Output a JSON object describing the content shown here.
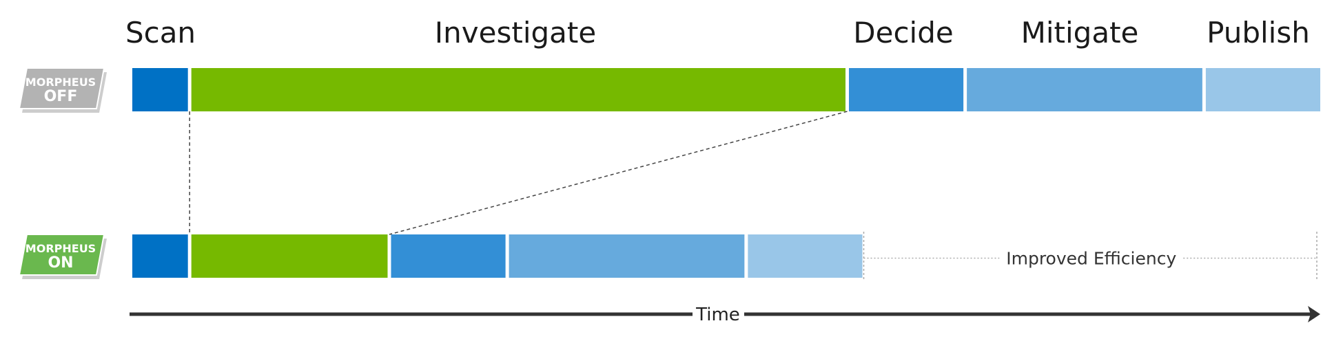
{
  "phases": [
    {
      "key": "scan",
      "label": "Scan",
      "color": "#0071c5"
    },
    {
      "key": "investigate",
      "label": "Investigate",
      "color": "#76b900"
    },
    {
      "key": "decide",
      "label": "Decide",
      "color": "#338fd6"
    },
    {
      "key": "mitigate",
      "label": "Mitigate",
      "color": "#66aadd"
    },
    {
      "key": "publish",
      "label": "Publish",
      "color": "#99c6e8"
    }
  ],
  "rows": [
    {
      "key": "off",
      "badge_top": "MORPHEUS",
      "badge_bottom": "OFF",
      "badge_color": "#b3b3b3",
      "durations": [
        85,
        1000,
        175,
        360,
        175
      ]
    },
    {
      "key": "on",
      "badge_top": "MORPHEUS",
      "badge_bottom": "ON",
      "badge_color": "#6ab84e",
      "durations": [
        85,
        300,
        175,
        360,
        175
      ]
    }
  ],
  "efficiency_label": "Improved Efficiency",
  "time_axis_label": "Time",
  "colors": {
    "text": "#1a1a1a",
    "axis": "#333333",
    "guide": "#444444",
    "dotted": "#aaaaaa"
  }
}
